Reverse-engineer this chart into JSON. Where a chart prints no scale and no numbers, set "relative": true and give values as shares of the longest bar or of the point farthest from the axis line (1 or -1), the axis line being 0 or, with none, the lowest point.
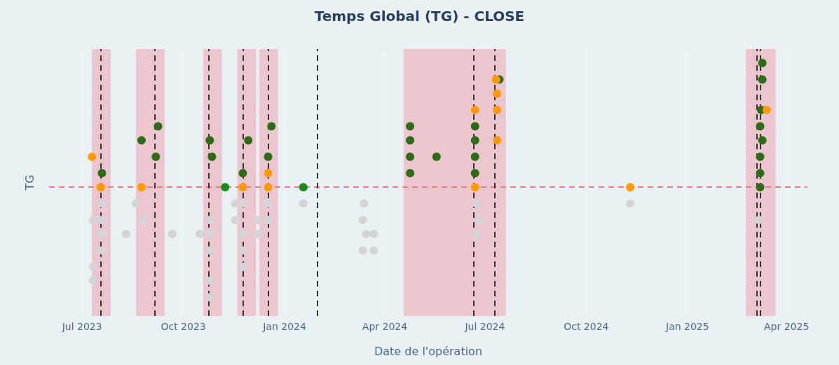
{
  "chart_data": {
    "type": "scatter",
    "title": "Temps Global (TG) - CLOSE",
    "xlabel": "Date de l'opération",
    "ylabel": "TG",
    "relative": true,
    "marker": "circle",
    "grid": "x",
    "legend": false,
    "xlim": [
      "2023-06-01",
      "2025-04-20"
    ],
    "xticks": [
      {
        "value": "2023-07-01",
        "label": "Jul 2023"
      },
      {
        "value": "2023-10-01",
        "label": "Oct 2023"
      },
      {
        "value": "2024-01-01",
        "label": "Jan 2024"
      },
      {
        "value": "2024-04-01",
        "label": "Apr 2024"
      },
      {
        "value": "2024-07-01",
        "label": "Jul 2024"
      },
      {
        "value": "2024-10-01",
        "label": "Oct 2024"
      },
      {
        "value": "2025-01-01",
        "label": "Jan 2025"
      },
      {
        "value": "2025-04-01",
        "label": "Apr 2025"
      }
    ],
    "series": [
      {
        "color": "#d4d4d8",
        "x": [
          "2023-07-11",
          "2023-07-11",
          "2023-07-11",
          "2023-07-19",
          "2023-07-19",
          "2023-07-19",
          "2023-07-19",
          "2023-08-10",
          "2023-08-19",
          "2023-08-25",
          "2023-09-21",
          "2023-10-16",
          "2023-10-25",
          "2023-10-25",
          "2023-10-25",
          "2023-10-25",
          "2023-10-25",
          "2023-11-17",
          "2023-11-17",
          "2023-11-24",
          "2023-11-24",
          "2023-11-24",
          "2023-11-24",
          "2023-12-07",
          "2023-12-08",
          "2023-12-17",
          "2023-12-17",
          "2024-01-18",
          "2024-03-12",
          "2024-03-12",
          "2024-03-13",
          "2024-03-15",
          "2024-03-22",
          "2024-03-22",
          "2024-06-23",
          "2024-06-26",
          "2024-06-23",
          "2024-11-10",
          "2025-03-07"
        ],
        "values": [
          0.13,
          0.07,
          0.33,
          0.4,
          0.33,
          0.27,
          0.2,
          0.27,
          0.4,
          0.33,
          0.27,
          0.27,
          0.27,
          0.33,
          0.2,
          0.07,
          0,
          0.4,
          0.33,
          0.4,
          0.27,
          0.2,
          0.13,
          0.33,
          0.27,
          0.4,
          0.33,
          0.4,
          0.33,
          0.2,
          0.4,
          0.27,
          0.27,
          0.2,
          0.4,
          0.33,
          0.27,
          0.4,
          0.33
        ]
      },
      {
        "color": "#2e6b16",
        "x": [
          "2023-07-19",
          "2023-08-24",
          "2023-09-08",
          "2023-09-06",
          "2023-10-25",
          "2023-10-27",
          "2023-11-24",
          "2023-11-29",
          "2023-12-17",
          "2023-12-20",
          "2024-04-24",
          "2024-04-24",
          "2024-04-24",
          "2024-04-24",
          "2024-05-18",
          "2024-06-22",
          "2024-06-22",
          "2024-06-22",
          "2024-06-22",
          "2024-07-14",
          "2025-03-08",
          "2025-03-08",
          "2025-03-08",
          "2025-03-08",
          "2025-03-09",
          "2025-03-10",
          "2025-03-10",
          "2025-03-10"
        ],
        "values": [
          0.53,
          0.67,
          0.73,
          0.6,
          0.67,
          0.6,
          0.53,
          0.67,
          0.6,
          0.73,
          0.73,
          0.67,
          0.6,
          0.53,
          0.6,
          0.73,
          0.67,
          0.6,
          0.53,
          0.93,
          0.47,
          0.53,
          0.6,
          0.73,
          0.8,
          0.67,
          0.93,
          1
        ]
      },
      {
        "color": "#1e8a1e",
        "x": [
          "2023-11-08",
          "2024-01-18"
        ],
        "values": [
          0.47,
          0.47
        ]
      },
      {
        "color": "#ff9a0a",
        "x": [
          "2023-07-10",
          "2023-07-18",
          "2023-08-24",
          "2023-11-24",
          "2023-12-17",
          "2023-12-17",
          "2024-06-22",
          "2024-06-22",
          "2024-07-11",
          "2024-07-12",
          "2024-07-12",
          "2024-07-12",
          "2024-11-10",
          "2025-03-14"
        ],
        "values": [
          0.6,
          0.47,
          0.47,
          0.47,
          0.53,
          0.47,
          0.8,
          0.47,
          0.93,
          0.87,
          0.8,
          0.67,
          0.47,
          0.8
        ]
      }
    ],
    "ref_lines": [
      {
        "axis": "y",
        "value": 0.47,
        "color": "#ee7b7b",
        "line_style": "dashed"
      },
      {
        "axis": "x",
        "value": "2023-07-18",
        "color": "#333333",
        "line_style": "dashed"
      },
      {
        "axis": "x",
        "value": "2023-09-05",
        "color": "#333333",
        "line_style": "dashed"
      },
      {
        "axis": "x",
        "value": "2023-10-24",
        "color": "#333333",
        "line_style": "dashed"
      },
      {
        "axis": "x",
        "value": "2023-11-24",
        "color": "#333333",
        "line_style": "dashed"
      },
      {
        "axis": "x",
        "value": "2023-12-17",
        "color": "#333333",
        "line_style": "dashed"
      },
      {
        "axis": "x",
        "value": "2024-01-31",
        "color": "#333333",
        "line_style": "dashed"
      },
      {
        "axis": "x",
        "value": "2024-06-21",
        "color": "#333333",
        "line_style": "dashed"
      },
      {
        "axis": "x",
        "value": "2024-07-10",
        "color": "#333333",
        "line_style": "dashed"
      },
      {
        "axis": "x",
        "value": "2025-03-05",
        "color": "#333333",
        "line_style": "dashed"
      },
      {
        "axis": "x",
        "value": "2025-03-08",
        "color": "#333333",
        "line_style": "dashed"
      }
    ],
    "bands": [
      {
        "axis": "x",
        "from": "2023-07-10",
        "to": "2023-07-27",
        "color": "#ebc6ce"
      },
      {
        "axis": "x",
        "from": "2023-08-19",
        "to": "2023-09-14",
        "color": "#ebc6ce"
      },
      {
        "axis": "x",
        "from": "2023-10-19",
        "to": "2023-11-05",
        "color": "#ebc6ce"
      },
      {
        "axis": "x",
        "from": "2023-11-19",
        "to": "2023-12-06",
        "color": "#ebc6ce"
      },
      {
        "axis": "x",
        "from": "2023-12-09",
        "to": "2023-12-26",
        "color": "#ebc6ce"
      },
      {
        "axis": "x",
        "from": "2024-04-18",
        "to": "2024-07-20",
        "color": "#ebc6ce"
      },
      {
        "axis": "x",
        "from": "2025-02-23",
        "to": "2025-03-22",
        "color": "#ebc6ce"
      }
    ]
  }
}
